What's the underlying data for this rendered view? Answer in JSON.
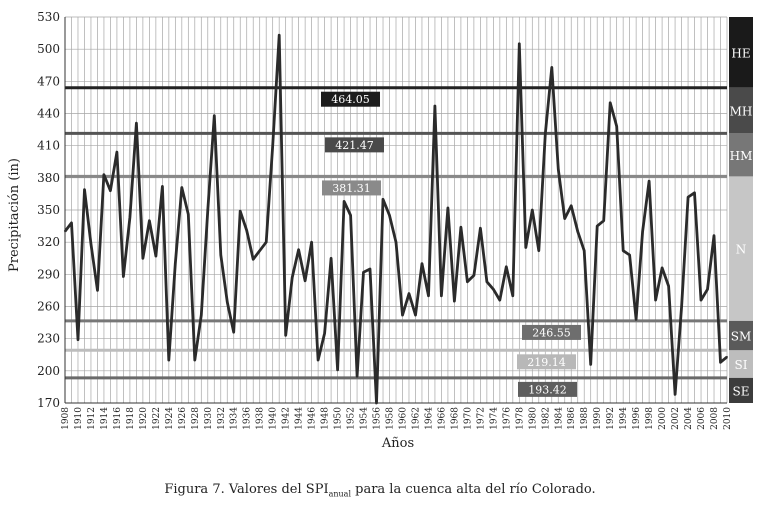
{
  "chart_data": {
    "type": "line",
    "ylabel": "Precipitación (in)",
    "xlabel": "Años",
    "ylim": [
      170,
      530
    ],
    "yticks": [
      170,
      200,
      230,
      260,
      290,
      320,
      350,
      380,
      410,
      440,
      470,
      500,
      530
    ],
    "xlim": [
      1908,
      2010
    ],
    "xtick_labels": [
      "1908",
      "1910",
      "1912",
      "1914",
      "1916",
      "1918",
      "1920",
      "1922",
      "1924",
      "1926",
      "1928",
      "1930",
      "1932",
      "1934",
      "1936",
      "1938",
      "1940",
      "1942",
      "1944",
      "1946",
      "1948",
      "1950",
      "1952",
      "1954",
      "1956",
      "1958",
      "1960",
      "1962",
      "1964",
      "1966",
      "1968",
      "1970",
      "1972",
      "1974",
      "1976",
      "1978",
      "1980",
      "1982",
      "1984",
      "1986",
      "1988",
      "1990",
      "1992",
      "1994",
      "1996",
      "1998",
      "2000",
      "2002",
      "2004",
      "2006",
      "2008",
      "2010"
    ],
    "grid": true,
    "series": [
      {
        "x": [
          1908,
          1909,
          1910,
          1911,
          1912,
          1913,
          1914,
          1915,
          1916,
          1917,
          1918,
          1919,
          1920,
          1921,
          1922,
          1923,
          1924,
          1925,
          1926,
          1927,
          1928,
          1929,
          1930,
          1931,
          1932,
          1933,
          1934,
          1935,
          1936,
          1937,
          1938,
          1939,
          1940,
          1941,
          1942,
          1943,
          1944,
          1945,
          1946,
          1947,
          1948,
          1949,
          1950,
          1951,
          1952,
          1953,
          1954,
          1955,
          1956,
          1957,
          1958,
          1959,
          1960,
          1961,
          1962,
          1963,
          1964,
          1965,
          1966,
          1967,
          1968,
          1969,
          1970,
          1971,
          1972,
          1973,
          1974,
          1975,
          1976,
          1977,
          1978,
          1979,
          1980,
          1981,
          1982,
          1983,
          1984,
          1985,
          1986,
          1987,
          1988,
          1989,
          1990,
          1991,
          1992,
          1993,
          1994,
          1995,
          1996,
          1997,
          1998,
          1999,
          2000,
          2001,
          2002,
          2003,
          2004,
          2005,
          2006,
          2007,
          2008,
          2009,
          2010
        ],
        "y": [
          330,
          338,
          229,
          369,
          318,
          275,
          383,
          368,
          404,
          288,
          343,
          431,
          305,
          340,
          307,
          372,
          210,
          300,
          371,
          346,
          210,
          252,
          350,
          438,
          308,
          264,
          236,
          349,
          331,
          304,
          312,
          320,
          410,
          513,
          233,
          287,
          313,
          284,
          320,
          210,
          235,
          305,
          201,
          358,
          345,
          195,
          292,
          295,
          170,
          360,
          345,
          320,
          252,
          272,
          252,
          300,
          270,
          447,
          270,
          352,
          265,
          334,
          283,
          289,
          333,
          283,
          276,
          266,
          297,
          270,
          505,
          315,
          350,
          312,
          421,
          483,
          388,
          342,
          354,
          330,
          312,
          206,
          335,
          340,
          450,
          428,
          312,
          308,
          248,
          330,
          377,
          266,
          296,
          279,
          178,
          260,
          362,
          366,
          266,
          276,
          326,
          208,
          213
        ]
      }
    ],
    "threshold_lines": [
      {
        "value": 464.05,
        "label": "464.05",
        "line_color": "#222222",
        "box_color": "#1c1c1c",
        "text_color": "#ffffff"
      },
      {
        "value": 421.47,
        "label": "421.47",
        "line_color": "#555555",
        "box_color": "#4a4a4a",
        "text_color": "#ffffff"
      },
      {
        "value": 381.31,
        "label": "381.31",
        "line_color": "#888888",
        "box_color": "#8a8a8a",
        "text_color": "#ffffff"
      },
      {
        "value": 246.55,
        "label": "246.55",
        "line_color": "#777777",
        "box_color": "#6e6e6e",
        "text_color": "#ffffff"
      },
      {
        "value": 219.14,
        "label": "219.14",
        "line_color": "#bdbdbd",
        "box_color": "#b8b8b8",
        "text_color": "#ffffff"
      },
      {
        "value": 193.42,
        "label": "193.42",
        "line_color": "#6a6a6a",
        "box_color": "#5e5e5e",
        "text_color": "#ffffff"
      }
    ],
    "category_bar": [
      {
        "label": "HE",
        "from": 464.05,
        "to": 530,
        "color": "#1a1a1a",
        "text_color": "#ffffff"
      },
      {
        "label": "MH",
        "from": 421.47,
        "to": 464.05,
        "color": "#4a4a4a",
        "text_color": "#ffffff"
      },
      {
        "label": "HM",
        "from": 381.31,
        "to": 421.47,
        "color": "#777777",
        "text_color": "#ffffff"
      },
      {
        "label": "N",
        "from": 246.55,
        "to": 381.31,
        "color": "#c6c6c6",
        "text_color": "#ffffff"
      },
      {
        "label": "SM",
        "from": 219.14,
        "to": 246.55,
        "color": "#5a5a5a",
        "text_color": "#ffffff"
      },
      {
        "label": "SI",
        "from": 193.42,
        "to": 219.14,
        "color": "#bdbdbd",
        "text_color": "#ffffff"
      },
      {
        "label": "SE",
        "from": 170,
        "to": 193.42,
        "color": "#3c3c3c",
        "text_color": "#ffffff"
      }
    ]
  },
  "caption": {
    "prefix": "Figura 7. Valores del SPI",
    "subscript": "anual",
    "suffix": " para la cuenca alta del río Colorado."
  }
}
